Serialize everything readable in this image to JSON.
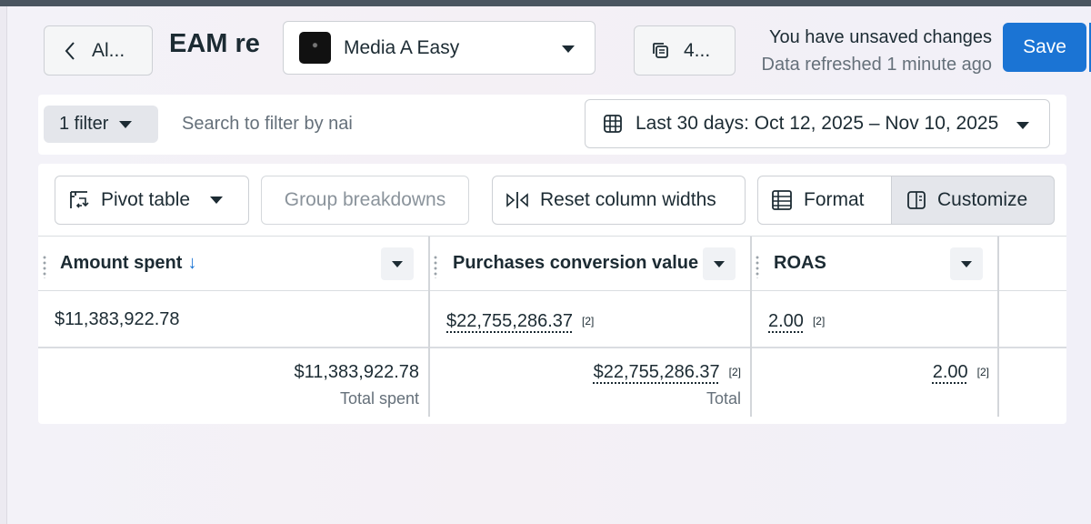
{
  "header": {
    "back_label": "Al...",
    "title": "EAM re",
    "account_name": "Media A Easy",
    "versions_label": "4...",
    "unsaved_text": "You have unsaved changes",
    "refreshed_text": "Data refreshed 1 minute ago",
    "save_label": "Save",
    "colors": {
      "primary": "#1b74d4"
    }
  },
  "filters": {
    "filter_chip_label": "1 filter",
    "search_placeholder": "Search to filter by nai",
    "date_range_label": "Last 30 days: Oct 12, 2025 – Nov 10, 2025"
  },
  "toolbar": {
    "pivot_label": "Pivot table",
    "group_label": "Group breakdowns",
    "reset_label": "Reset column widths",
    "format_label": "Format",
    "customize_label": "Customize"
  },
  "table": {
    "columns": [
      {
        "label": "Amount spent",
        "sort_icon": "arrow-down-icon",
        "sort_direction": "descending"
      },
      {
        "label": "Purchases conversion value"
      },
      {
        "label": "ROAS"
      }
    ],
    "rows": [
      {
        "amount_spent": "$11,383,922.78",
        "conversion_value": "$22,755,286.37",
        "conversion_note": "[2]",
        "roas": "2.00",
        "roas_note": "[2]"
      }
    ],
    "totals": {
      "amount_spent": "$11,383,922.78",
      "amount_caption": "Total spent",
      "conversion_value": "$22,755,286.37",
      "conversion_note": "[2]",
      "conversion_caption": "Total",
      "roas": "2.00",
      "roas_note": "[2]"
    }
  }
}
